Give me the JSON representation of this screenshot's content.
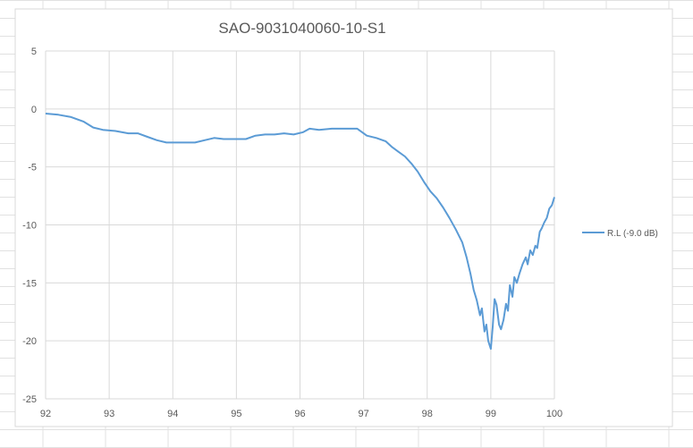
{
  "colors": {
    "sheet_grid": "#e1e1e1",
    "plot_grid": "#d9d9d9",
    "series_line": "#5b9bd5",
    "text": "#595959",
    "chart_border": "#d9d9d9"
  },
  "chart_data": {
    "type": "line",
    "title": "SAO-9031040060-10-S1",
    "xlabel": "",
    "ylabel": "",
    "xlim": [
      92,
      100
    ],
    "ylim": [
      -25,
      5
    ],
    "x_ticks": [
      92,
      93,
      94,
      95,
      96,
      97,
      98,
      99,
      100
    ],
    "y_ticks": [
      5,
      0,
      -5,
      -10,
      -15,
      -20,
      -25
    ],
    "grid": true,
    "legend_position": "right",
    "series": [
      {
        "name": "R.L (-9.0 dB)",
        "color": "#5b9bd5",
        "points": [
          [
            92.0,
            -0.4
          ],
          [
            92.2,
            -0.5
          ],
          [
            92.4,
            -0.7
          ],
          [
            92.6,
            -1.1
          ],
          [
            92.75,
            -1.6
          ],
          [
            92.9,
            -1.8
          ],
          [
            93.1,
            -1.9
          ],
          [
            93.3,
            -2.1
          ],
          [
            93.45,
            -2.1
          ],
          [
            93.6,
            -2.4
          ],
          [
            93.75,
            -2.7
          ],
          [
            93.9,
            -2.9
          ],
          [
            94.05,
            -2.9
          ],
          [
            94.2,
            -2.9
          ],
          [
            94.35,
            -2.9
          ],
          [
            94.5,
            -2.7
          ],
          [
            94.65,
            -2.5
          ],
          [
            94.8,
            -2.6
          ],
          [
            95.0,
            -2.6
          ],
          [
            95.15,
            -2.6
          ],
          [
            95.3,
            -2.3
          ],
          [
            95.45,
            -2.2
          ],
          [
            95.6,
            -2.2
          ],
          [
            95.75,
            -2.1
          ],
          [
            95.9,
            -2.2
          ],
          [
            96.05,
            -2.0
          ],
          [
            96.15,
            -1.7
          ],
          [
            96.3,
            -1.8
          ],
          [
            96.5,
            -1.7
          ],
          [
            96.7,
            -1.7
          ],
          [
            96.9,
            -1.7
          ],
          [
            97.05,
            -2.3
          ],
          [
            97.2,
            -2.5
          ],
          [
            97.35,
            -2.8
          ],
          [
            97.45,
            -3.3
          ],
          [
            97.55,
            -3.7
          ],
          [
            97.65,
            -4.1
          ],
          [
            97.75,
            -4.7
          ],
          [
            97.85,
            -5.4
          ],
          [
            97.95,
            -6.3
          ],
          [
            98.05,
            -7.1
          ],
          [
            98.15,
            -7.7
          ],
          [
            98.25,
            -8.5
          ],
          [
            98.35,
            -9.4
          ],
          [
            98.45,
            -10.4
          ],
          [
            98.55,
            -11.5
          ],
          [
            98.62,
            -12.8
          ],
          [
            98.68,
            -14.2
          ],
          [
            98.73,
            -15.6
          ],
          [
            98.78,
            -16.5
          ],
          [
            98.83,
            -17.8
          ],
          [
            98.86,
            -17.2
          ],
          [
            98.9,
            -19.2
          ],
          [
            98.93,
            -18.6
          ],
          [
            98.96,
            -20.0
          ],
          [
            99.0,
            -20.7
          ],
          [
            99.03,
            -18.8
          ],
          [
            99.06,
            -16.4
          ],
          [
            99.09,
            -16.9
          ],
          [
            99.13,
            -18.6
          ],
          [
            99.16,
            -19.0
          ],
          [
            99.2,
            -18.2
          ],
          [
            99.24,
            -16.8
          ],
          [
            99.27,
            -17.4
          ],
          [
            99.3,
            -15.2
          ],
          [
            99.34,
            -16.2
          ],
          [
            99.37,
            -14.5
          ],
          [
            99.41,
            -15.0
          ],
          [
            99.45,
            -14.2
          ],
          [
            99.5,
            -13.4
          ],
          [
            99.55,
            -12.8
          ],
          [
            99.58,
            -13.4
          ],
          [
            99.62,
            -12.2
          ],
          [
            99.66,
            -12.6
          ],
          [
            99.7,
            -11.8
          ],
          [
            99.73,
            -12.0
          ],
          [
            99.77,
            -10.6
          ],
          [
            99.8,
            -10.3
          ],
          [
            99.84,
            -9.8
          ],
          [
            99.88,
            -9.4
          ],
          [
            99.92,
            -8.6
          ],
          [
            99.96,
            -8.3
          ],
          [
            100.0,
            -7.6
          ]
        ]
      }
    ]
  }
}
